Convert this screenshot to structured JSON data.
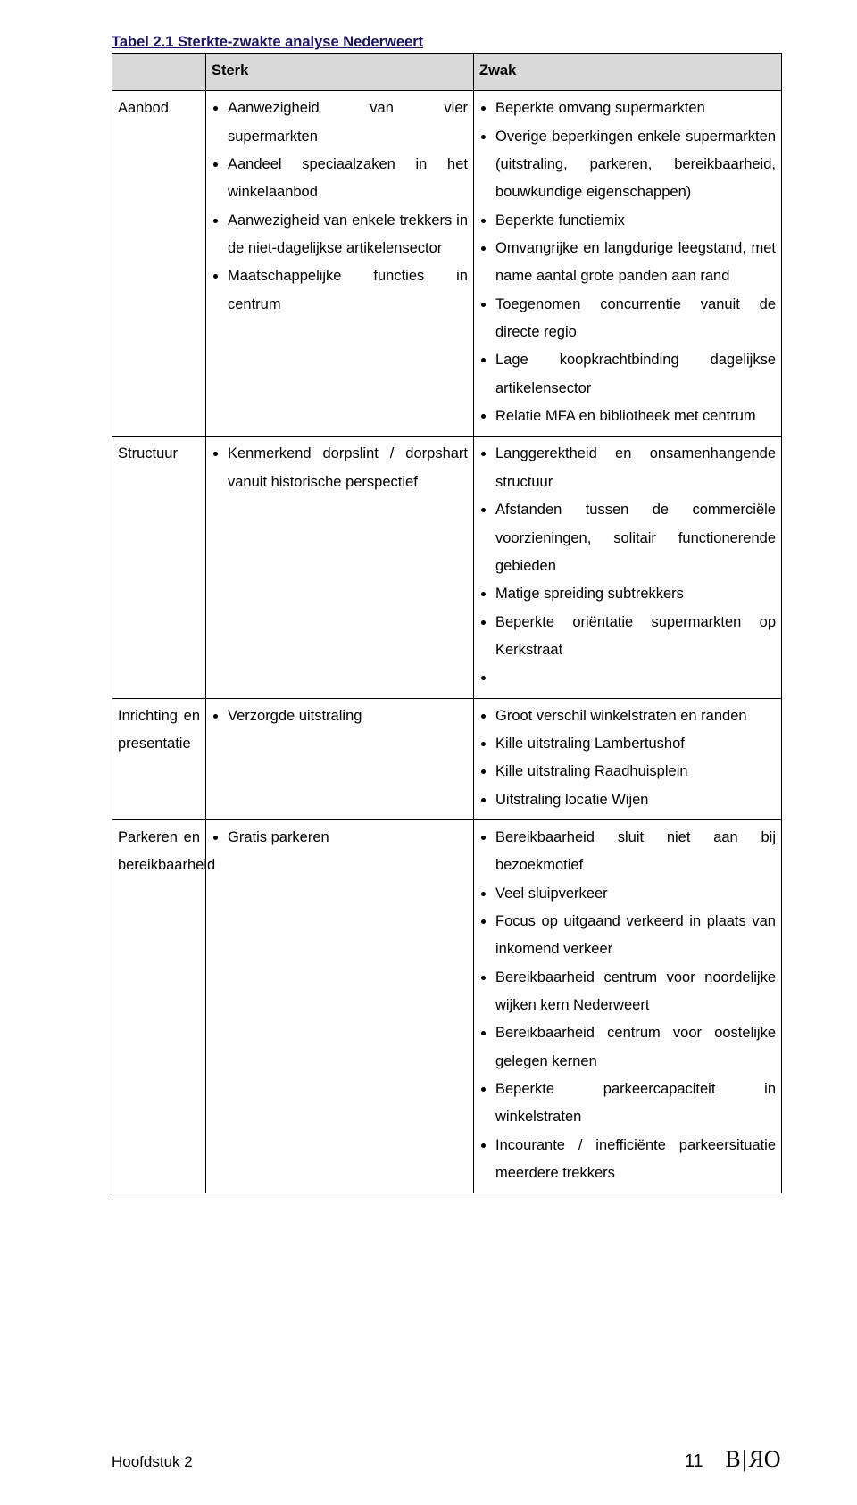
{
  "title": "Tabel 2.1 Sterkte-zwakte analyse Nederweert",
  "header": {
    "col1": "",
    "col2": "Sterk",
    "col3": "Zwak"
  },
  "rows": [
    {
      "label": "Aanbod",
      "sterk": [
        "Aanwezigheid van vier supermarkten",
        "Aandeel speciaalzaken in het winkelaanbod",
        "Aanwezigheid van enkele trekkers in de niet-dagelijkse artikelensector",
        "Maatschappelijke functies in centrum"
      ],
      "zwak": [
        "Beperkte omvang supermarkten",
        "Overige beperkingen enkele supermarkten (uitstraling, parkeren, bereikbaarheid, bouwkundige eigenschappen)",
        "Beperkte functiemix",
        "Omvangrijke en langdurige leegstand, met name aantal grote panden aan rand",
        "Toegenomen concurrentie vanuit de directe regio",
        "Lage koopkrachtbinding dagelijkse artikelensector",
        "Relatie MFA en bibliotheek met centrum"
      ]
    },
    {
      "label": "Structuur",
      "sterk": [
        "Kenmerkend dorpslint / dorpshart vanuit historische perspectief"
      ],
      "zwak": [
        "Langgerektheid en onsamenhangende structuur",
        "Afstanden tussen de commerciële voorzieningen, solitair functionerende gebieden",
        "Matige spreiding subtrekkers",
        "Beperkte oriëntatie supermarkten op Kerkstraat"
      ],
      "zwak_trailing_empty": true
    },
    {
      "label": "Inrichting en presentatie",
      "sterk": [
        "Verzorgde uitstraling"
      ],
      "zwak": [
        "Groot verschil winkelstraten en randen",
        "Kille uitstraling Lambertushof",
        "Kille uitstraling Raadhuisplein",
        "Uitstraling locatie Wijen"
      ]
    },
    {
      "label": "Parkeren en bereikbaarheid",
      "sterk": [
        "Gratis parkeren"
      ],
      "zwak": [
        "Bereikbaarheid sluit niet aan bij bezoekmotief",
        "Veel sluipverkeer",
        "Focus op uitgaand verkeerd in plaats van inkomend verkeer",
        "Bereikbaarheid centrum voor noordelijke wijken kern Nederweert",
        "Bereikbaarheid centrum voor oostelijke gelegen kernen",
        "Beperkte parkeercapaciteit in winkelstraten",
        "Incourante / inefficiënte parkeersituatie meerdere trekkers"
      ]
    }
  ],
  "footer": {
    "chapter": "Hoofdstuk 2",
    "page": "11",
    "logo": {
      "b1": "B",
      "bar": "|",
      "r_flipped": "R",
      "o": "O"
    }
  }
}
